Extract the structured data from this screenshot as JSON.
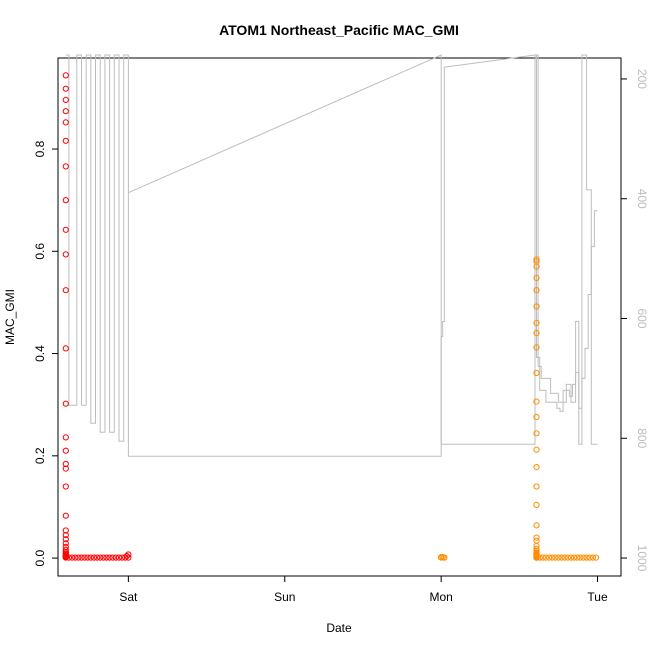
{
  "chart_data": {
    "type": "scatter",
    "title": "ATOM1 Northeast_Pacific MAC_GMI",
    "xlabel": "Date",
    "ylabel": "MAC_GMI",
    "x_unit": "days",
    "xlim": [
      -0.45,
      3.15
    ],
    "ylim": [
      -0.035,
      0.978
    ],
    "x_ticks": [
      {
        "value": 0,
        "label": "Sat"
      },
      {
        "value": 1,
        "label": "Sun"
      },
      {
        "value": 2,
        "label": "Mon"
      },
      {
        "value": 3,
        "label": "Tue"
      }
    ],
    "y_ticks": [
      0.0,
      0.2,
      0.4,
      0.6,
      0.8
    ],
    "y_tick_labels": [
      "0.0",
      "0.2",
      "0.4",
      "0.6",
      "0.8"
    ],
    "y2_range": [
      1030,
      165
    ],
    "y2_ticks": [
      200,
      400,
      600,
      800,
      1000
    ],
    "y2_tick_labels": [
      "200",
      "400",
      "600",
      "800",
      "1000"
    ],
    "grid": false,
    "colors": {
      "series_a": "#ff0000",
      "series_b": "#ff8c00",
      "pressure": "#bdbdbd",
      "axis": "#000000"
    },
    "series": [
      {
        "color": "#ff0000",
        "x": [
          -0.4,
          -0.4,
          -0.4,
          -0.4,
          -0.4,
          -0.4,
          -0.4,
          -0.4,
          -0.4,
          -0.4,
          -0.4,
          -0.4,
          -0.4,
          -0.4,
          -0.4,
          -0.4,
          -0.4,
          -0.4,
          -0.4,
          -0.4,
          -0.4,
          -0.4,
          -0.4,
          -0.4,
          -0.4,
          -0.4,
          -0.4,
          -0.4,
          -0.4,
          -0.4,
          -0.4,
          -0.4,
          -0.4,
          -0.38,
          -0.36,
          -0.34,
          -0.32,
          -0.3,
          -0.28,
          -0.26,
          -0.24,
          -0.22,
          -0.2,
          -0.18,
          -0.16,
          -0.14,
          -0.12,
          -0.1,
          -0.08,
          -0.06,
          -0.04,
          -0.02,
          0.0,
          -0.01,
          0.0
        ],
        "y": [
          0.944,
          0.918,
          0.896,
          0.874,
          0.852,
          0.816,
          0.766,
          0.7,
          0.642,
          0.594,
          0.524,
          0.41,
          0.302,
          0.236,
          0.21,
          0.184,
          0.175,
          0.14,
          0.083,
          0.054,
          0.045,
          0.037,
          0.029,
          0.022,
          0.016,
          0.012,
          0.009,
          0.007,
          0.005,
          0.004,
          0.003,
          0.002,
          0.001,
          0.001,
          0.001,
          0.001,
          0.001,
          0.001,
          0.001,
          0.001,
          0.001,
          0.001,
          0.001,
          0.001,
          0.001,
          0.001,
          0.001,
          0.001,
          0.001,
          0.001,
          0.001,
          0.001,
          0.001,
          0.004,
          0.007
        ]
      },
      {
        "color": "#ff8c00",
        "x": [
          2.0,
          2.02,
          2.01,
          2.0,
          2.02,
          2.61,
          2.61,
          2.61,
          2.61,
          2.61,
          2.61,
          2.61,
          2.61,
          2.61,
          2.61,
          2.61,
          2.61,
          2.61,
          2.61,
          2.61,
          2.61,
          2.61,
          2.61,
          2.61,
          2.61,
          2.61,
          2.61,
          2.61,
          2.61,
          2.61,
          2.61,
          2.61,
          2.61,
          2.61,
          2.61,
          2.61,
          2.61,
          2.61,
          2.61,
          2.61,
          2.63,
          2.65,
          2.67,
          2.69,
          2.71,
          2.73,
          2.75,
          2.77,
          2.79,
          2.81,
          2.83,
          2.85,
          2.87,
          2.89,
          2.91,
          2.93,
          2.95,
          2.97,
          2.99
        ],
        "y": [
          0.001,
          0.001,
          0.002,
          0.002,
          0.001,
          0.584,
          0.58,
          0.57,
          0.548,
          0.524,
          0.492,
          0.46,
          0.44,
          0.412,
          0.362,
          0.306,
          0.276,
          0.244,
          0.212,
          0.178,
          0.14,
          0.104,
          0.064,
          0.04,
          0.034,
          0.024,
          0.018,
          0.014,
          0.011,
          0.009,
          0.007,
          0.006,
          0.005,
          0.004,
          0.003,
          0.002,
          0.001,
          0.001,
          0.001,
          0.001,
          0.001,
          0.001,
          0.001,
          0.001,
          0.001,
          0.001,
          0.001,
          0.001,
          0.001,
          0.001,
          0.001,
          0.001,
          0.001,
          0.001,
          0.001,
          0.001,
          0.001,
          0.001,
          0.001
        ]
      },
      {
        "color": "#bdbdbd",
        "type": "line",
        "axis": "right",
        "x": [
          -0.4,
          -0.38,
          -0.38,
          -0.33,
          -0.33,
          -0.3,
          -0.3,
          -0.27,
          -0.27,
          -0.24,
          -0.24,
          -0.21,
          -0.21,
          -0.18,
          -0.18,
          -0.15,
          -0.15,
          -0.12,
          -0.12,
          -0.09,
          -0.09,
          -0.06,
          -0.06,
          -0.03,
          -0.03,
          0.0,
          0.0,
          2.0,
          2.0,
          2.01,
          2.01,
          2.02,
          2.02,
          2.03,
          2.6,
          2.61,
          2.61,
          2.63,
          2.63,
          2.67,
          2.67,
          2.74,
          2.74,
          2.76,
          2.76,
          2.78,
          2.78,
          2.8,
          2.8,
          2.82,
          2.82,
          2.84,
          2.84,
          2.86,
          2.86,
          2.88,
          2.88,
          2.9,
          2.9,
          2.92,
          2.92,
          2.94,
          2.94,
          2.96,
          2.96,
          2.98,
          2.98,
          3.0
        ],
        "y": [
          160,
          160,
          745,
          745,
          160,
          160,
          745,
          745,
          160,
          160,
          775,
          775,
          160,
          160,
          790,
          790,
          160,
          160,
          790,
          790,
          160,
          160,
          805,
          805,
          160,
          160,
          830,
          830,
          630,
          630,
          605,
          605,
          180,
          180,
          160,
          160,
          665,
          665,
          720,
          720,
          740,
          740,
          750,
          750,
          755,
          755,
          720,
          720,
          720,
          720,
          730,
          730,
          710,
          710,
          690,
          690,
          750,
          750,
          700,
          700,
          650,
          650,
          560,
          560,
          480,
          480,
          420,
          420
        ]
      },
      {
        "color": "#bdbdbd",
        "type": "line",
        "axis": "right",
        "x": [
          0.0,
          2.0,
          2.0,
          2.6,
          2.6,
          2.62,
          2.62,
          2.64,
          2.64,
          2.7,
          2.7,
          2.75,
          2.75,
          2.8,
          2.8,
          2.83,
          2.83,
          2.86,
          2.86,
          2.88,
          2.88,
          2.9,
          2.9,
          2.93,
          2.93,
          2.96,
          2.96,
          3.0
        ],
        "y": [
          390,
          160,
          810,
          810,
          160,
          160,
          680,
          680,
          700,
          700,
          725,
          725,
          740,
          740,
          710,
          710,
          740,
          740,
          605,
          605,
          810,
          810,
          160,
          160,
          385,
          385,
          810,
          810
        ]
      }
    ]
  }
}
